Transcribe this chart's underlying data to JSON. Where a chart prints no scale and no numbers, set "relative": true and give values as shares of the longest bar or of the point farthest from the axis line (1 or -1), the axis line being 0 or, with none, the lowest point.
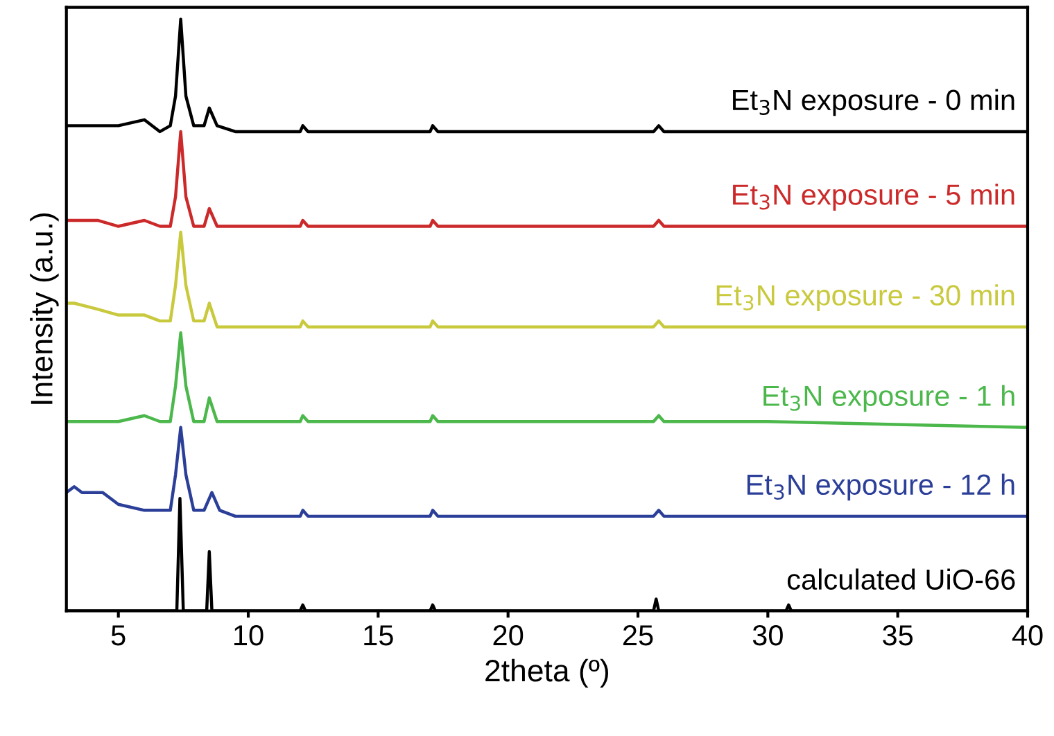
{
  "chart_data": {
    "type": "line",
    "relative": true,
    "xlabel": "2theta (º)",
    "ylabel": "Intensity (a.u.)",
    "xlim": [
      3,
      40
    ],
    "xticks": [
      5,
      10,
      15,
      20,
      25,
      30,
      35,
      40
    ],
    "tick_labels": "x",
    "grid": false,
    "marker": "none",
    "line_style": "solid",
    "series": [
      {
        "name": "Et$_{3}$N exposure - 0 min",
        "color": "#000000",
        "x": [
          3,
          4.2,
          5,
          6,
          6.6,
          7,
          7.2,
          7.4,
          7.6,
          7.9,
          8.3,
          8.5,
          8.8,
          9.5,
          12,
          12.1,
          12.3,
          17,
          17.1,
          17.3,
          25.6,
          25.8,
          26,
          30,
          40
        ],
        "values": [
          0.82,
          0.82,
          0.82,
          0.83,
          0.81,
          0.82,
          0.87,
          1.0,
          0.87,
          0.82,
          0.82,
          0.85,
          0.82,
          0.81,
          0.81,
          0.82,
          0.81,
          0.81,
          0.82,
          0.81,
          0.81,
          0.82,
          0.81,
          0.81,
          0.81
        ]
      },
      {
        "name": "Et$_{3}$N exposure - 5 min",
        "color": "#cc2a2a",
        "x": [
          3,
          4.2,
          5,
          6,
          6.6,
          7,
          7.2,
          7.4,
          7.6,
          7.9,
          8.3,
          8.5,
          8.8,
          9.5,
          12,
          12.1,
          12.3,
          17,
          17.1,
          17.3,
          25.6,
          25.8,
          26,
          30,
          40
        ],
        "values": [
          0.66,
          0.66,
          0.65,
          0.66,
          0.65,
          0.65,
          0.7,
          0.81,
          0.7,
          0.65,
          0.65,
          0.68,
          0.65,
          0.65,
          0.65,
          0.66,
          0.65,
          0.65,
          0.66,
          0.65,
          0.65,
          0.66,
          0.65,
          0.65,
          0.65
        ]
      },
      {
        "name": "Et$_{3}$N exposure - 30 min",
        "color": "#c9c93e",
        "x": [
          3,
          3.3,
          4.2,
          5,
          6,
          6.6,
          7,
          7.2,
          7.4,
          7.6,
          7.9,
          8.3,
          8.5,
          8.8,
          9.5,
          12,
          12.1,
          12.3,
          17,
          17.1,
          17.3,
          25.6,
          25.8,
          26,
          30,
          40
        ],
        "values": [
          0.52,
          0.52,
          0.51,
          0.5,
          0.5,
          0.49,
          0.49,
          0.55,
          0.64,
          0.55,
          0.49,
          0.49,
          0.52,
          0.48,
          0.48,
          0.48,
          0.49,
          0.48,
          0.48,
          0.49,
          0.48,
          0.48,
          0.49,
          0.48,
          0.48,
          0.48
        ]
      },
      {
        "name": "Et$_{3}$N exposure - 1 h",
        "color": "#4cb84c",
        "x": [
          3,
          4.2,
          5,
          6,
          6.6,
          7,
          7.2,
          7.4,
          7.6,
          7.9,
          8.3,
          8.5,
          8.8,
          9.5,
          12,
          12.1,
          12.3,
          17,
          17.1,
          17.3,
          25.6,
          25.8,
          26,
          30,
          40
        ],
        "values": [
          0.32,
          0.32,
          0.32,
          0.33,
          0.32,
          0.32,
          0.38,
          0.47,
          0.38,
          0.32,
          0.32,
          0.36,
          0.32,
          0.32,
          0.32,
          0.33,
          0.32,
          0.32,
          0.33,
          0.32,
          0.32,
          0.33,
          0.32,
          0.32,
          0.31
        ]
      },
      {
        "name": "Et$_{3}$N exposure - 12 h",
        "color": "#2b3f99",
        "x": [
          3,
          3.3,
          3.6,
          4,
          4.4,
          5,
          6,
          6.6,
          7,
          7.2,
          7.4,
          7.6,
          7.9,
          8.3,
          8.6,
          8.9,
          9.5,
          12,
          12.1,
          12.3,
          17,
          17.1,
          17.3,
          25.6,
          25.8,
          26,
          30,
          40
        ],
        "values": [
          0.2,
          0.21,
          0.2,
          0.2,
          0.2,
          0.18,
          0.17,
          0.17,
          0.17,
          0.23,
          0.31,
          0.23,
          0.17,
          0.17,
          0.2,
          0.17,
          0.16,
          0.16,
          0.17,
          0.16,
          0.16,
          0.17,
          0.16,
          0.16,
          0.17,
          0.16,
          0.16,
          0.16
        ]
      },
      {
        "name": "calculated UiO-66",
        "color": "#000000",
        "x": [
          3,
          7.25,
          7.37,
          7.5,
          8.4,
          8.5,
          8.6,
          12,
          12.1,
          12.2,
          17,
          17.1,
          17.2,
          25.6,
          25.7,
          25.8,
          30.7,
          30.8,
          30.9,
          40
        ],
        "values": [
          0,
          0,
          0.19,
          0,
          0,
          0.1,
          0,
          0,
          0.01,
          0,
          0,
          0.01,
          0,
          0,
          0.02,
          0,
          0,
          0.01,
          0,
          0
        ]
      }
    ]
  }
}
